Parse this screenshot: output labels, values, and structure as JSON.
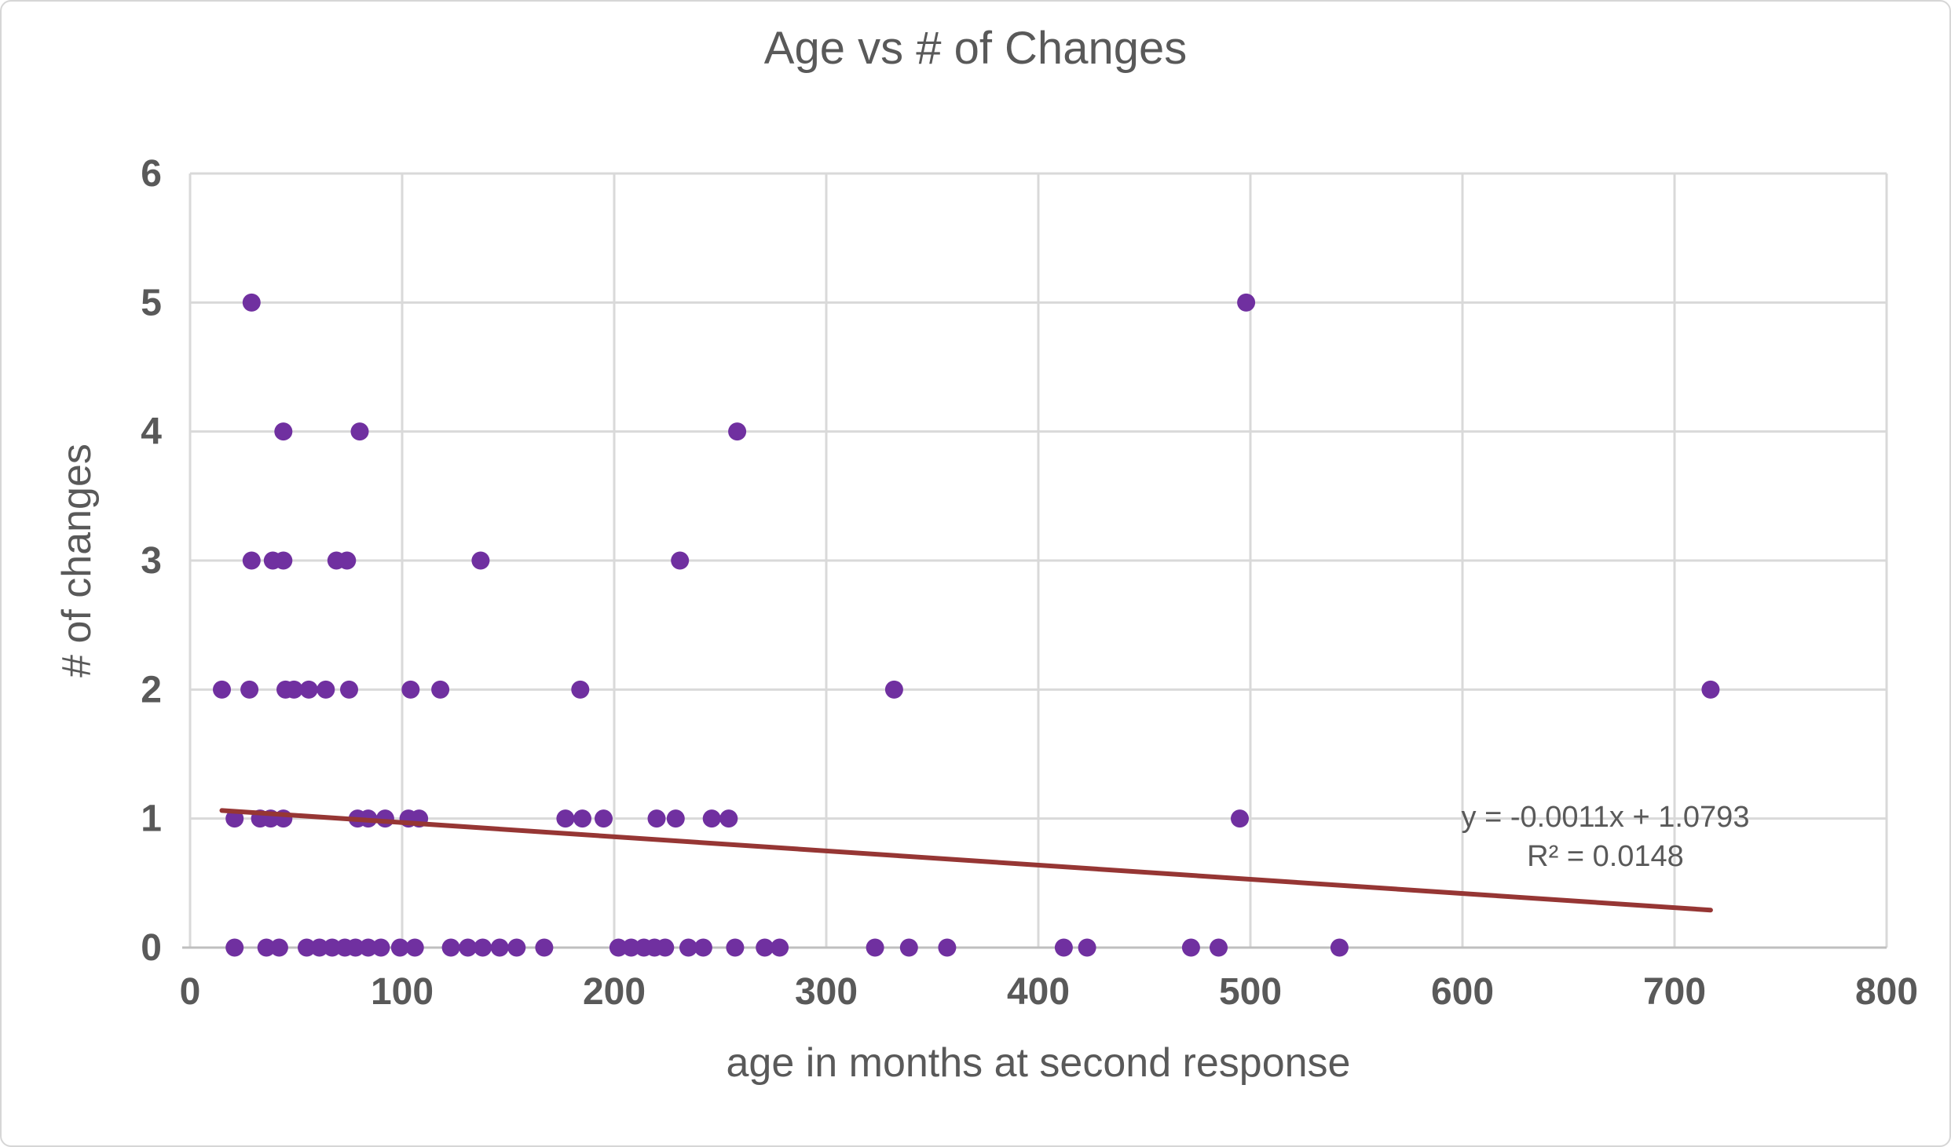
{
  "chart_data": {
    "type": "scatter",
    "title": "Age vs # of Changes",
    "xlabel": "age in months at second response",
    "ylabel": "# of changes",
    "xlim": [
      0,
      800
    ],
    "ylim": [
      0,
      6
    ],
    "x_ticks": [
      0,
      100,
      200,
      300,
      400,
      500,
      600,
      700,
      800
    ],
    "y_ticks": [
      0,
      1,
      2,
      3,
      4,
      5,
      6
    ],
    "grid": true,
    "legend": "none",
    "marker_color": "#7030A0",
    "gridline_color": "#d9d9d9",
    "axis_line_color": "#bfbfbf",
    "text_color": "#595959",
    "points": [
      [
        21,
        0
      ],
      [
        36,
        0
      ],
      [
        42,
        0
      ],
      [
        55,
        0
      ],
      [
        61,
        0
      ],
      [
        67,
        0
      ],
      [
        73,
        0
      ],
      [
        78,
        0
      ],
      [
        84,
        0
      ],
      [
        90,
        0
      ],
      [
        99,
        0
      ],
      [
        106,
        0
      ],
      [
        123,
        0
      ],
      [
        131,
        0
      ],
      [
        138,
        0
      ],
      [
        146,
        0
      ],
      [
        154,
        0
      ],
      [
        167,
        0
      ],
      [
        202,
        0
      ],
      [
        208,
        0
      ],
      [
        214,
        0
      ],
      [
        219,
        0
      ],
      [
        224,
        0
      ],
      [
        235,
        0
      ],
      [
        242,
        0
      ],
      [
        257,
        0
      ],
      [
        271,
        0
      ],
      [
        278,
        0
      ],
      [
        323,
        0
      ],
      [
        339,
        0
      ],
      [
        357,
        0
      ],
      [
        412,
        0
      ],
      [
        423,
        0
      ],
      [
        472,
        0
      ],
      [
        485,
        0
      ],
      [
        542,
        0
      ],
      [
        21,
        1
      ],
      [
        33,
        1
      ],
      [
        38,
        1
      ],
      [
        44,
        1
      ],
      [
        79,
        1
      ],
      [
        84,
        1
      ],
      [
        92,
        1
      ],
      [
        103,
        1
      ],
      [
        108,
        1
      ],
      [
        177,
        1
      ],
      [
        185,
        1
      ],
      [
        195,
        1
      ],
      [
        220,
        1
      ],
      [
        229,
        1
      ],
      [
        246,
        1
      ],
      [
        254,
        1
      ],
      [
        495,
        1
      ],
      [
        15,
        2
      ],
      [
        28,
        2
      ],
      [
        45,
        2
      ],
      [
        49,
        2
      ],
      [
        56,
        2
      ],
      [
        64,
        2
      ],
      [
        75,
        2
      ],
      [
        104,
        2
      ],
      [
        118,
        2
      ],
      [
        184,
        2
      ],
      [
        332,
        2
      ],
      [
        717,
        2
      ],
      [
        29,
        3
      ],
      [
        39,
        3
      ],
      [
        44,
        3
      ],
      [
        69,
        3
      ],
      [
        74,
        3
      ],
      [
        137,
        3
      ],
      [
        231,
        3
      ],
      [
        44,
        4
      ],
      [
        80,
        4
      ],
      [
        258,
        4
      ],
      [
        29,
        5
      ],
      [
        498,
        5
      ]
    ],
    "trendline": {
      "slope": -0.0011,
      "intercept": 1.0793,
      "r_squared": 0.0148,
      "x_start": 15,
      "x_end": 717,
      "color": "#963634",
      "label_line1": "y = -0.0011x + 1.0793",
      "label_line2": "R² = 0.0148"
    }
  }
}
